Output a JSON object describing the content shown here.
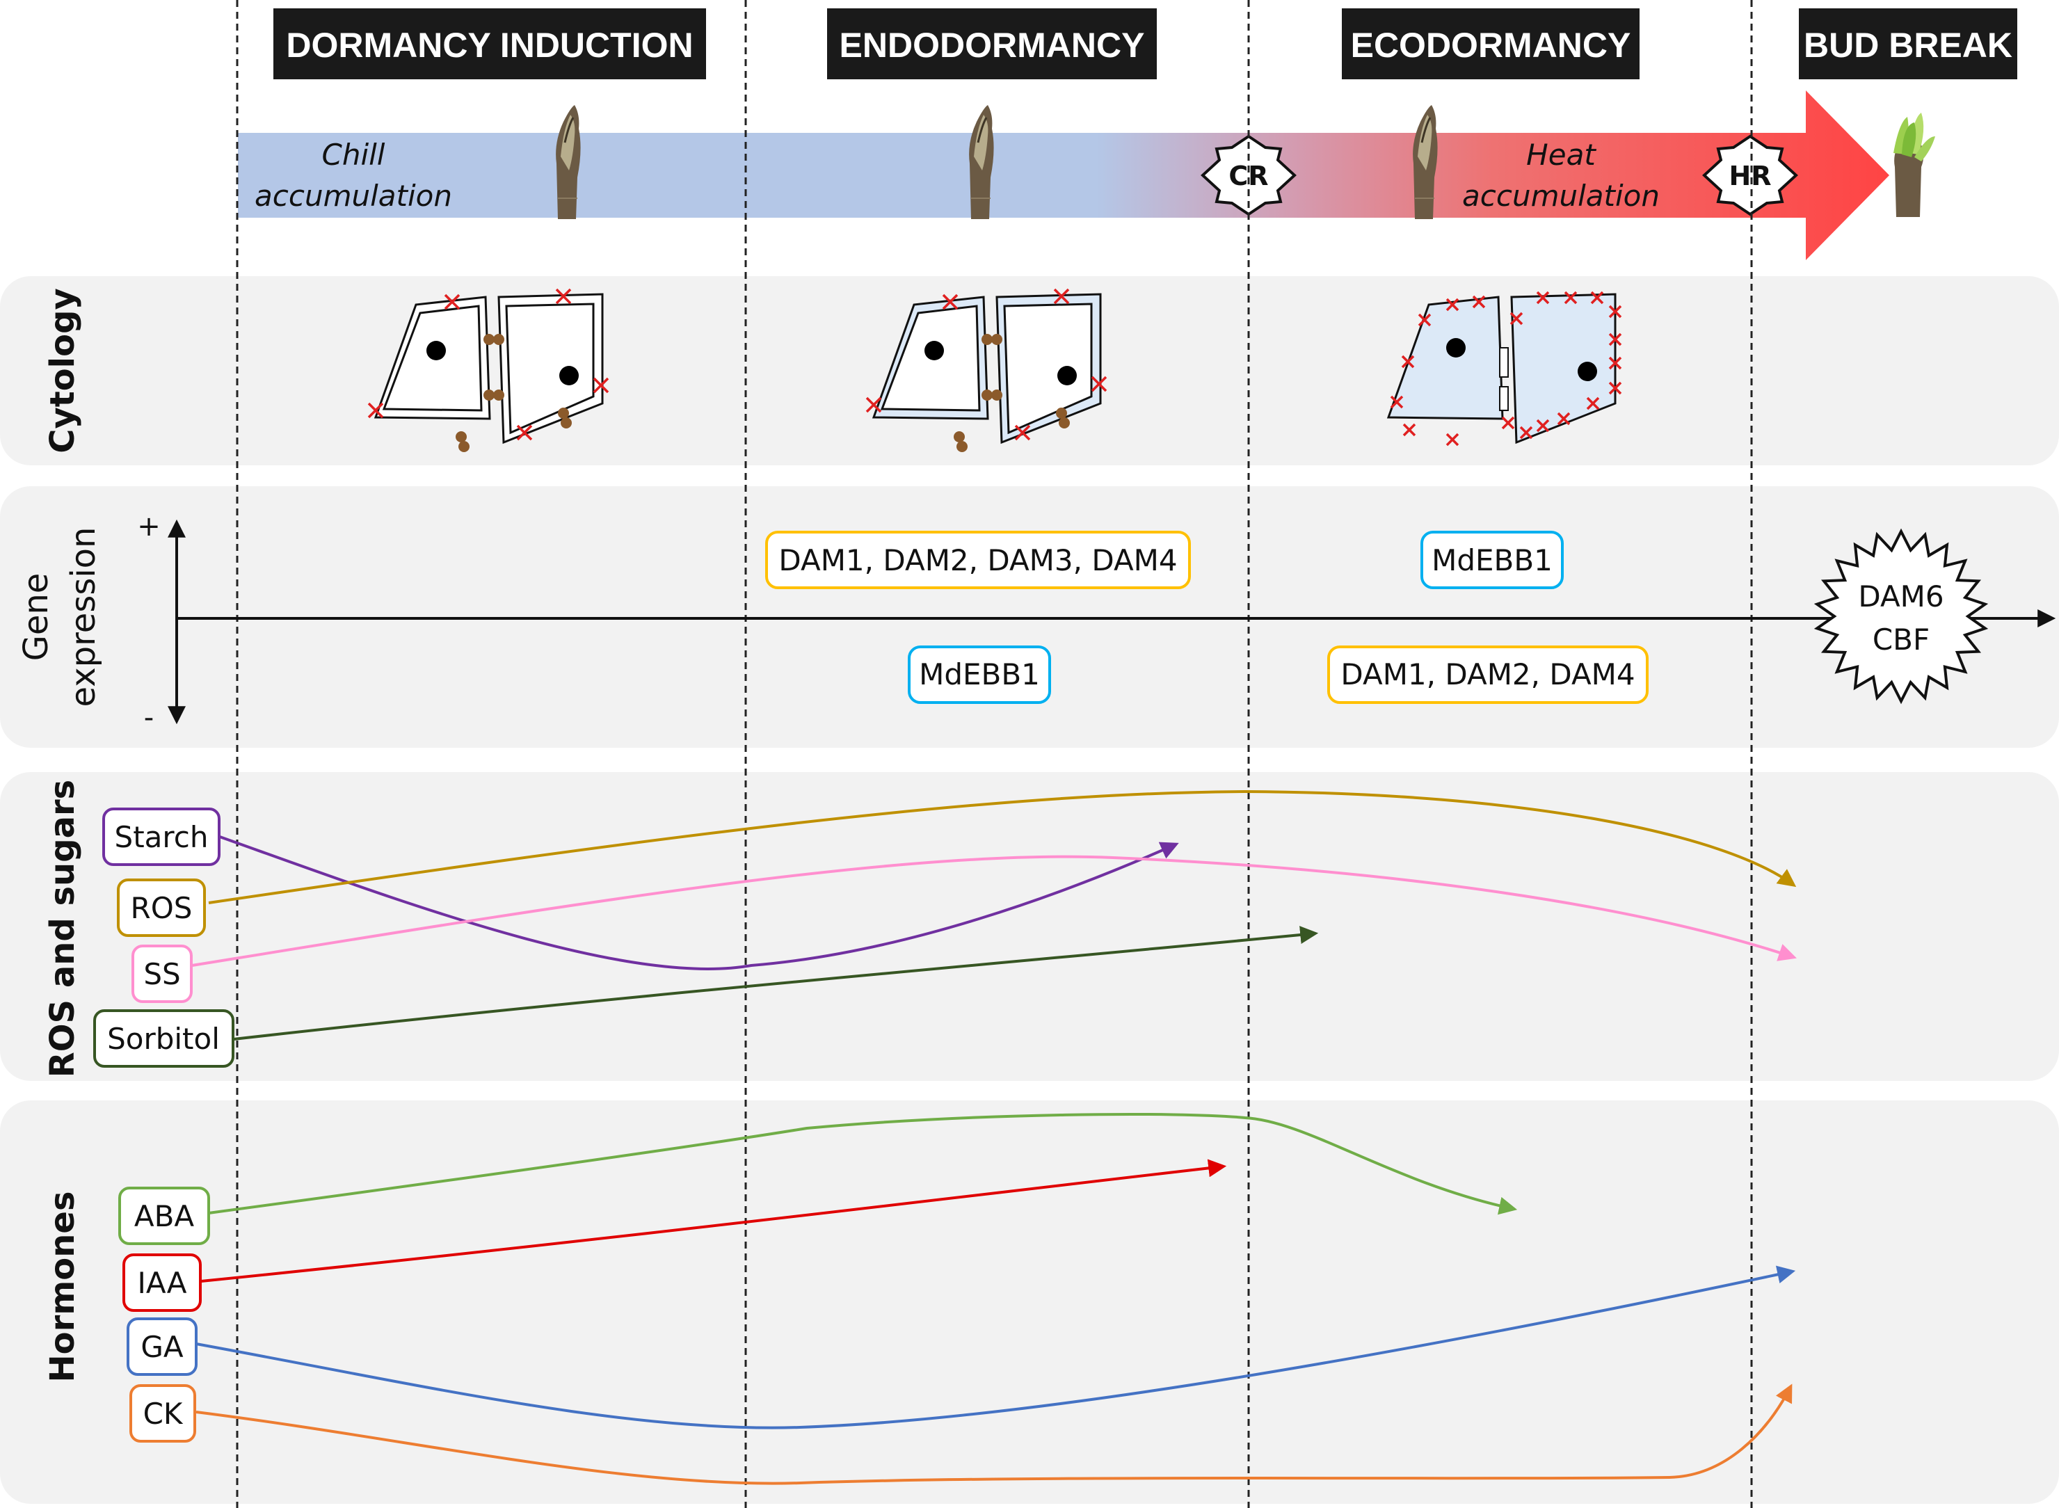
{
  "phases": [
    {
      "key": "induction",
      "label": "DORMANCY INDUCTION"
    },
    {
      "key": "endo",
      "label": "ENDODORMANCY"
    },
    {
      "key": "eco",
      "label": "ECODORMANCY"
    },
    {
      "key": "budbreak",
      "label": "BUD BREAK"
    }
  ],
  "timeline": {
    "chill_line1": "Chill",
    "chill_line2": "accumulation",
    "heat_line1": "Heat",
    "heat_line2": "accumulation",
    "cr_marker": "CR",
    "hr_marker": "HR",
    "colors": {
      "chill": "#b4c7e7",
      "heat": "#ff4444"
    }
  },
  "rows": {
    "cytology": "Cytology",
    "gene_line1": "Gene",
    "gene_line2": "expression",
    "ros": "ROS and sugars",
    "hormones": "Hormones"
  },
  "gene_expression": {
    "plus": "+",
    "minus": "-",
    "endo_up": "DAM1, DAM2, DAM3, DAM4",
    "endo_down": "MdEBB1",
    "eco_up": "MdEBB1",
    "eco_down": "DAM1, DAM2, DAM4",
    "burst_line1": "DAM6",
    "burst_line2": "CBF",
    "colors": {
      "dam": "#ffc000",
      "ebb": "#00b0f0"
    }
  },
  "ros_sugars": [
    {
      "label": "Starch",
      "color": "#7030a0"
    },
    {
      "label": "ROS",
      "color": "#bf9000"
    },
    {
      "label": "SS",
      "color": "#ff8fcf"
    },
    {
      "label": "Sorbitol",
      "color": "#375623"
    }
  ],
  "hormone_list": [
    {
      "label": "ABA",
      "color": "#70ad47"
    },
    {
      "label": "IAA",
      "color": "#e00000"
    },
    {
      "label": "GA",
      "color": "#4472c4"
    },
    {
      "label": "CK",
      "color": "#ed7d31"
    }
  ]
}
